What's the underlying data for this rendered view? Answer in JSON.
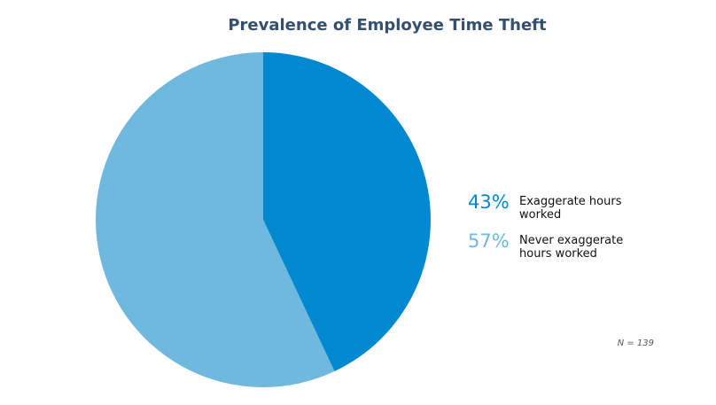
{
  "chart_data": {
    "type": "pie",
    "title": "Prevalence of Employee Time Theft",
    "slices": [
      {
        "pct_label": "43%",
        "value": 43,
        "label": "Exaggerate hours worked",
        "color": "#0088d0"
      },
      {
        "pct_label": "57%",
        "value": 57,
        "label": "Never exaggerate hours worked",
        "color": "#6fb8de"
      }
    ],
    "legend_placement": "right",
    "note": "N = 139"
  }
}
